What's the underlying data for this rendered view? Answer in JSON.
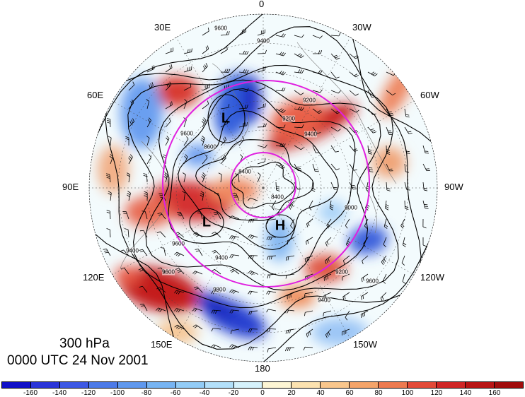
{
  "map_data": {
    "projection": "north-polar-stereographic",
    "level_label": "300 hPa",
    "time_label": "0000 UTC 24 Nov 2001",
    "longitude_labels": [
      {
        "text": "0",
        "lon": 0
      },
      {
        "text": "30W",
        "lon": -30
      },
      {
        "text": "60W",
        "lon": -60
      },
      {
        "text": "90W",
        "lon": -90
      },
      {
        "text": "120W",
        "lon": -120
      },
      {
        "text": "150W",
        "lon": -150
      },
      {
        "text": "180",
        "lon": 180
      },
      {
        "text": "150E",
        "lon": 150
      },
      {
        "text": "120E",
        "lon": 120
      },
      {
        "text": "90E",
        "lon": 90
      },
      {
        "text": "60E",
        "lon": 60
      },
      {
        "text": "30E",
        "lon": 30
      }
    ],
    "pressure_centers": [
      {
        "text": "L",
        "type": "low"
      },
      {
        "text": "L",
        "type": "low"
      },
      {
        "text": "H",
        "type": "high"
      }
    ],
    "contour_labels": [
      "9400",
      "9600",
      "9200",
      "9400",
      "9600",
      "9200",
      "8600",
      "8400",
      "8400",
      "9000",
      "9400",
      "9600",
      "9400",
      "9600",
      "9800",
      "9200",
      "9600",
      "9400"
    ],
    "height_contour_interval_m": 100,
    "highlight_circle_color": "#e020e0"
  },
  "colorbar": {
    "tick_labels": [
      "-160",
      "-140",
      "-120",
      "-100",
      "-80",
      "-60",
      "-40",
      "-20",
      "0",
      "20",
      "40",
      "60",
      "80",
      "100",
      "120",
      "140",
      "160"
    ],
    "colors": [
      "#1010c8",
      "#2a34d8",
      "#3d58e4",
      "#4c7ae8",
      "#5f98ee",
      "#77b4f2",
      "#93ccf6",
      "#b3e0fa",
      "#d6f2fc",
      "#fdf5d4",
      "#fce2b0",
      "#f9c68c",
      "#f4a46a",
      "#ed7a50",
      "#e24a38",
      "#cf2626",
      "#b81414",
      "#a00c0c"
    ]
  }
}
